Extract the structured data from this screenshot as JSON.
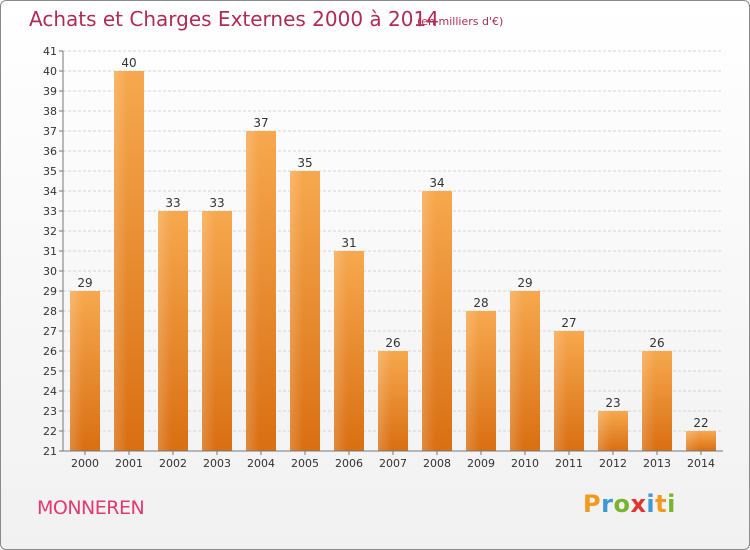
{
  "title": "Achats et Charges Externes 2000 à 2014",
  "subtitle": "(en milliers d'€)",
  "place": "MONNEREN",
  "logo": {
    "letters": [
      "P",
      "r",
      "o",
      "x",
      "i",
      "t",
      "i"
    ],
    "colors": [
      "#f39a1e",
      "#3d9ad6",
      "#78b52c",
      "#e3342f",
      "#3d9ad6",
      "#f39a1e",
      "#78b52c"
    ]
  },
  "chart_data": {
    "type": "bar",
    "categories": [
      "2000",
      "2001",
      "2002",
      "2003",
      "2004",
      "2005",
      "2006",
      "2007",
      "2008",
      "2009",
      "2010",
      "2011",
      "2012",
      "2013",
      "2014"
    ],
    "values": [
      29,
      40,
      33,
      33,
      37,
      35,
      31,
      26,
      34,
      28,
      29,
      27,
      23,
      26,
      22
    ],
    "ylim": [
      21,
      41
    ],
    "yticks": [
      21,
      22,
      23,
      24,
      25,
      26,
      27,
      28,
      29,
      30,
      31,
      32,
      33,
      34,
      35,
      36,
      37,
      38,
      39,
      40,
      41
    ],
    "grid": true,
    "bar_color": "#f0a048"
  }
}
